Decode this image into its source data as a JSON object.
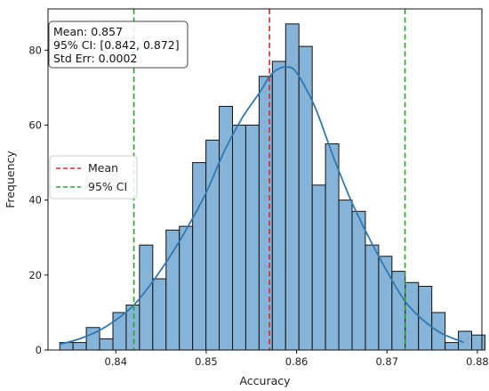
{
  "chart_data": {
    "type": "bar",
    "subtype": "histogram",
    "title": "",
    "xlabel": "Accuracy",
    "ylabel": "Frequency",
    "xlim": [
      0.8325,
      0.8805
    ],
    "ylim": [
      0,
      91
    ],
    "xticks": [
      0.84,
      0.85,
      0.86,
      0.87,
      0.88
    ],
    "xtick_labels": [
      "0.84",
      "0.85",
      "0.86",
      "0.87",
      "0.88"
    ],
    "yticks": [
      0,
      20,
      40,
      60,
      80
    ],
    "ytick_labels": [
      "0",
      "20",
      "40",
      "60",
      "80"
    ],
    "grid": false,
    "bins": {
      "start": 0.8338,
      "width": 0.00147,
      "counts": [
        2,
        2,
        6,
        3,
        10,
        12,
        28,
        19,
        32,
        33,
        50,
        56,
        65,
        60,
        60,
        73,
        77,
        87,
        81,
        44,
        55,
        40,
        37,
        28,
        25,
        21,
        18,
        17,
        10,
        2,
        5,
        4
      ]
    },
    "kde": {
      "x": [
        0.8338,
        0.836,
        0.838,
        0.84,
        0.842,
        0.844,
        0.846,
        0.848,
        0.85,
        0.852,
        0.854,
        0.856,
        0.857,
        0.858,
        0.859,
        0.86,
        0.862,
        0.864,
        0.866,
        0.868,
        0.87,
        0.872,
        0.874,
        0.876,
        0.878,
        0.8785
      ],
      "y": [
        1.5,
        3,
        5,
        8,
        12,
        18,
        25,
        33,
        42,
        53,
        62,
        69,
        73,
        75,
        75.5,
        74,
        65,
        52,
        40,
        30,
        21,
        13,
        8,
        4.5,
        2.5,
        2
      ]
    },
    "vlines": [
      {
        "name": "Mean",
        "x": 0.857,
        "color": "#d62728",
        "style": "dashed"
      },
      {
        "name": "95% CI",
        "x": 0.842,
        "color": "#2ca02c",
        "style": "dashed"
      },
      {
        "name": "95% CI",
        "x": 0.872,
        "color": "#2ca02c",
        "style": "dashed"
      }
    ],
    "stats_box": {
      "mean_line": "Mean: 0.857",
      "ci_line": "95% CI: [0.842, 0.872]",
      "stderr_line": "Std Err: 0.0002"
    },
    "legend": {
      "placement": "center-left",
      "entries": [
        {
          "label": "Mean",
          "color": "#d62728"
        },
        {
          "label": "95% CI",
          "color": "#2ca02c"
        }
      ]
    },
    "colors": {
      "bar_fill": "#86b4d8",
      "bar_edge": "#111111",
      "kde_line": "#2f78b0"
    }
  }
}
